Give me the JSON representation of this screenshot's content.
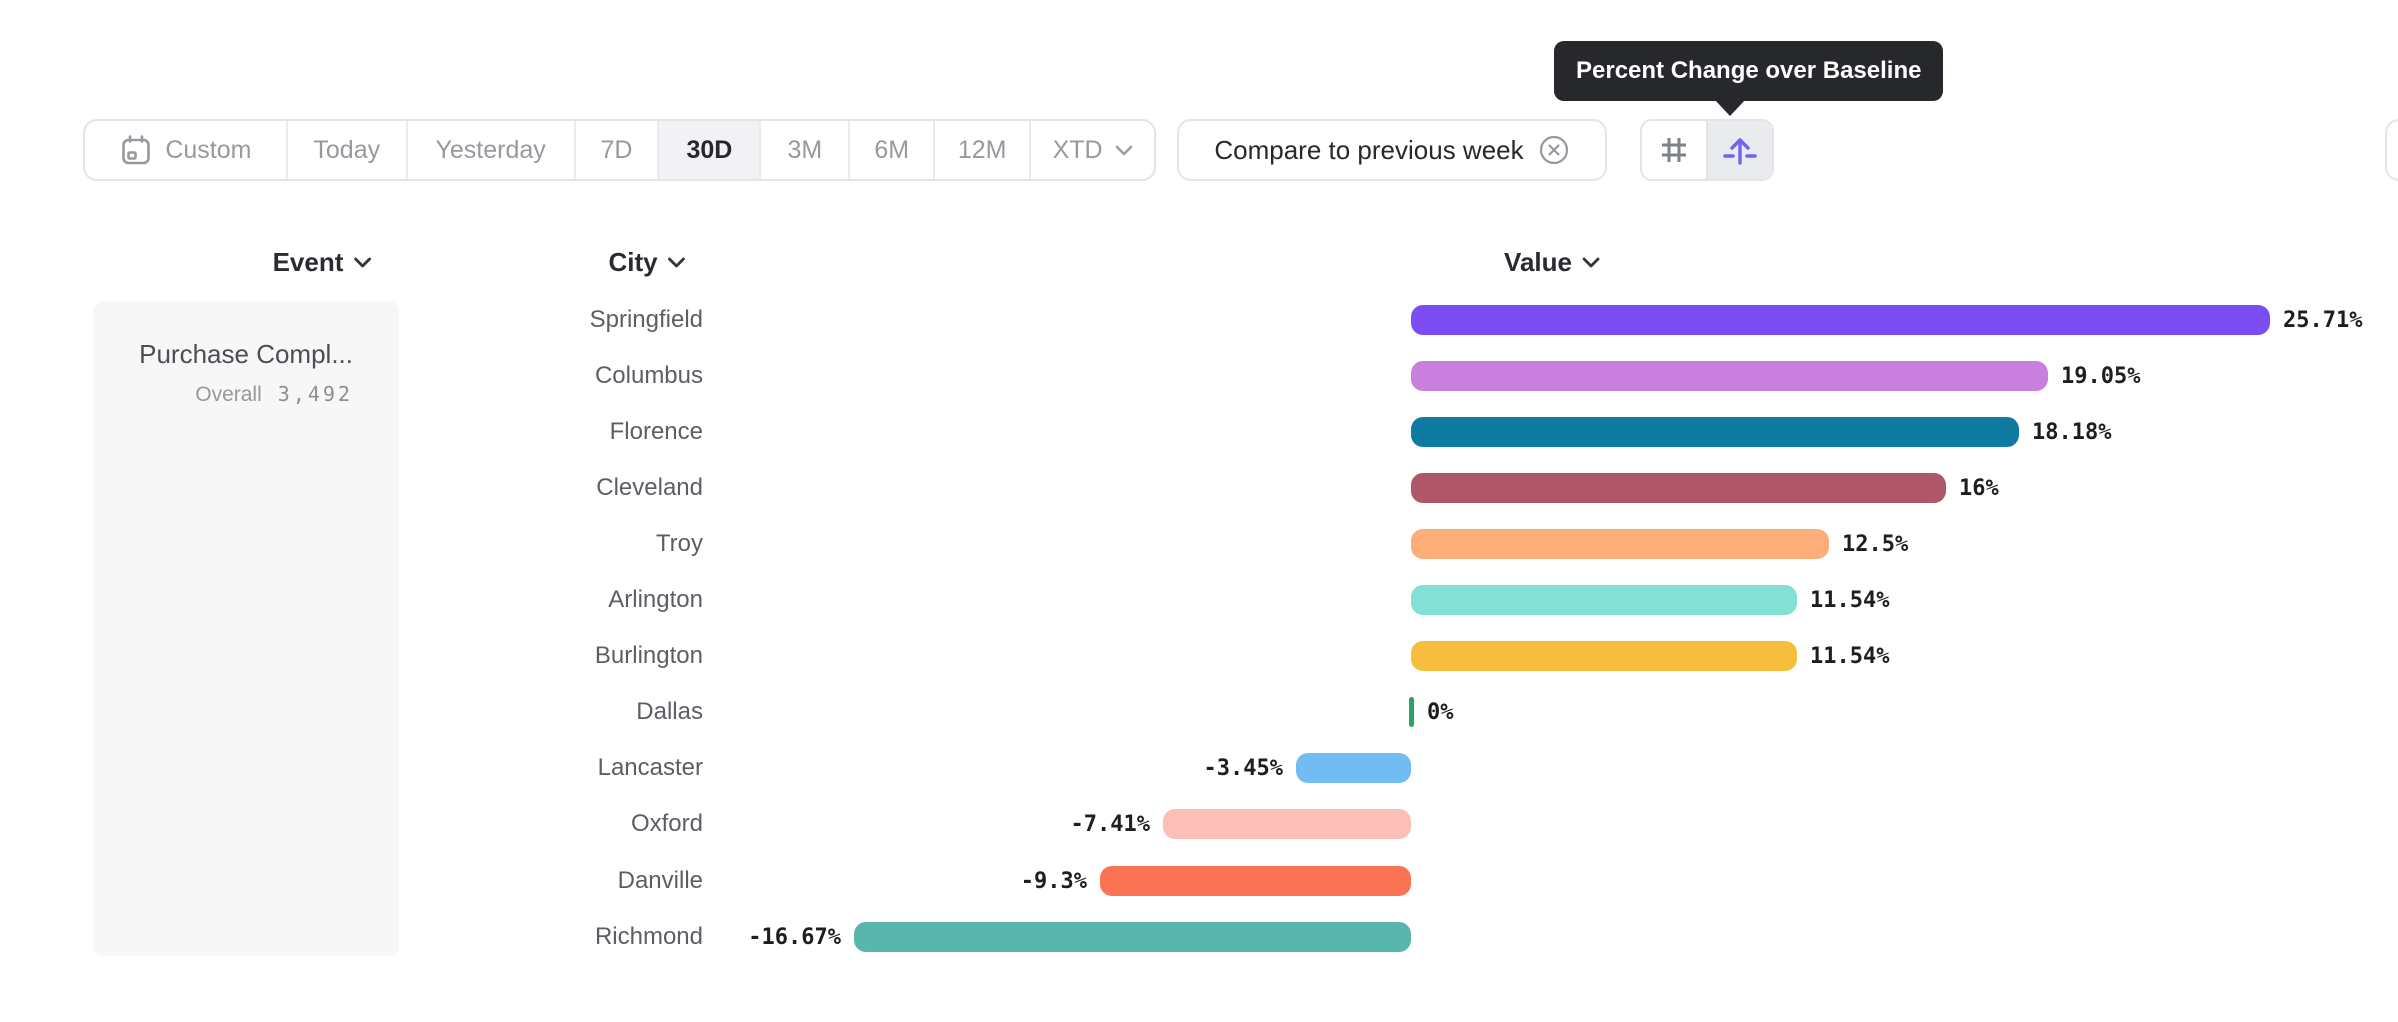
{
  "tooltip": {
    "text": "Percent Change over Baseline"
  },
  "toolbar": {
    "date_buttons": [
      {
        "label": "Custom",
        "icon": "calendar-icon",
        "selected": false
      },
      {
        "label": "Today",
        "selected": false
      },
      {
        "label": "Yesterday",
        "selected": false
      },
      {
        "label": "7D",
        "selected": false
      },
      {
        "label": "30D",
        "selected": true
      },
      {
        "label": "3M",
        "selected": false
      },
      {
        "label": "6M",
        "selected": false
      },
      {
        "label": "12M",
        "selected": false
      },
      {
        "label": "XTD",
        "icon": "chevron-down-icon",
        "selected": false
      }
    ],
    "compare_chip": {
      "label": "Compare to previous week",
      "remove_icon": "circle-x-icon"
    },
    "view_toggle": [
      {
        "name": "grid-view",
        "icon": "hash-icon",
        "active": false
      },
      {
        "name": "percent-change-over-baseline",
        "icon": "arrow-up-from-line-icon",
        "active": true
      }
    ]
  },
  "columns": {
    "event": "Event",
    "city": "City",
    "value": "Value"
  },
  "event_panel": {
    "title": "Purchase Compl...",
    "subtitle_label": "Overall",
    "subtitle_value": "3,492"
  },
  "chart_data": {
    "type": "bar",
    "orientation": "horizontal",
    "unit": "%",
    "title": "",
    "xlabel": "Value",
    "ylabel": "City",
    "baseline": 0,
    "xlim": [
      -16.67,
      25.71
    ],
    "grid": false,
    "legend": false,
    "categories": [
      "Springfield",
      "Columbus",
      "Florence",
      "Cleveland",
      "Troy",
      "Arlington",
      "Burlington",
      "Dallas",
      "Lancaster",
      "Oxford",
      "Danville",
      "Richmond"
    ],
    "values": [
      25.71,
      19.05,
      18.18,
      16,
      12.5,
      11.54,
      11.54,
      0,
      -3.45,
      -7.41,
      -9.3,
      -16.67
    ],
    "labels": [
      "25.71%",
      "19.05%",
      "18.18%",
      "16%",
      "12.5%",
      "11.54%",
      "11.54%",
      "0%",
      "-3.45%",
      "-7.41%",
      "-9.3%",
      "-16.67%"
    ],
    "colors": [
      "#7B4DF2",
      "#C87FDD",
      "#0F7BA0",
      "#B05669",
      "#FDAD78",
      "#82E0D4",
      "#F6BE3C",
      "#30A164",
      "#71BDF3",
      "#FBBFB7",
      "#FB7355",
      "#59B6AC"
    ],
    "zero_tick_color": "#30A164"
  },
  "ui_colors": {
    "border": "#e3e4e8",
    "toolbar_text": "#97999f",
    "selected_bg": "#f2f2f4",
    "selected_text": "#26282c",
    "tooltip_bg": "#26282b",
    "accent_purple": "#7262ee",
    "card_bg": "#f7f7f8",
    "city_text": "#5b5e64",
    "value_text": "#1d1e21"
  }
}
